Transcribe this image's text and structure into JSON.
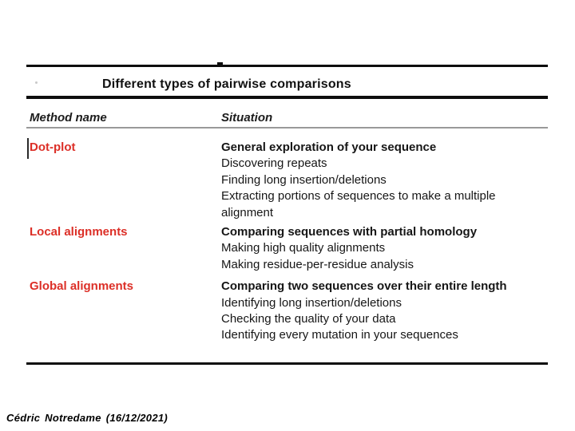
{
  "slide": {
    "title": "Different types of pairwise comparisons",
    "footer": "Cédric Notredame (16/12/2021)"
  },
  "table": {
    "columns": [
      "Method name",
      "Situation"
    ],
    "rows": [
      {
        "method": "Dot-plot",
        "situations": [
          "General exploration of your sequence",
          "Discovering repeats",
          "Finding long insertion/deletions",
          "Extracting portions of sequences to make a multiple alignment"
        ]
      },
      {
        "method": "Local alignments",
        "situations": [
          "Comparing sequences with partial homology",
          "Making high quality alignments",
          "Making residue-per-residue analysis"
        ]
      },
      {
        "method": "Global alignments",
        "situations": [
          "Comparing two sequences over their entire length",
          "Identifying long insertion/deletions",
          "Checking the quality of your data",
          "Identifying every mutation in your sequences"
        ]
      }
    ]
  },
  "colors": {
    "accent_red": "#dc2f27",
    "rule_black": "#0d0d0d",
    "rule_gray": "#999999",
    "ink": "#111111",
    "paper": "#ffffff"
  }
}
